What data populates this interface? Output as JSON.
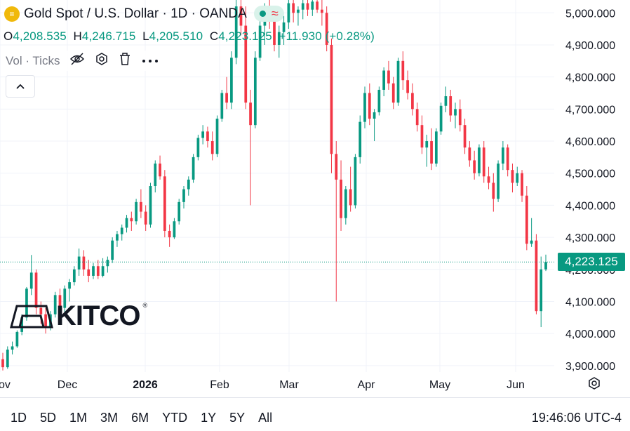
{
  "legend": {
    "symbol_glyph": "≡",
    "title": "Gold Spot / U.S. Dollar · 1D · OANDA",
    "wave_glyph": "≈"
  },
  "ohlc": {
    "o_label": "O",
    "o": "4,208.535",
    "h_label": "H",
    "h": "4,246.715",
    "l_label": "L",
    "l": "4,205.510",
    "c_label": "C",
    "c": "4,223.125",
    "change": "+11.930 (+0.28%)"
  },
  "volume_row": {
    "label": "Vol · Ticks"
  },
  "price_label": "4,223.125",
  "watermark": "KITCO",
  "time_ranges": [
    "1D",
    "5D",
    "1M",
    "3M",
    "6M",
    "YTD",
    "1Y",
    "5Y",
    "All"
  ],
  "clock": "19:46:06 UTC-4",
  "colors": {
    "up": "#089981",
    "down": "#f23645",
    "grid": "#f0f3fa"
  },
  "chart_data": {
    "type": "candlestick",
    "title": "Gold Spot / U.S. Dollar · 1D · OANDA",
    "ylim": [
      3880,
      5040
    ],
    "yticks": [
      "3,900.000",
      "4,000.000",
      "4,100.000",
      "4,200.000",
      "4,300.000",
      "4,400.000",
      "4,500.000",
      "4,600.000",
      "4,700.000",
      "4,800.000",
      "4,900.000",
      "5,000.000"
    ],
    "ytick_values": [
      3900,
      4000,
      4100,
      4200,
      4300,
      4400,
      4500,
      4600,
      4700,
      4800,
      4900,
      5000
    ],
    "xticks": [
      "ov",
      "Dec",
      "2026",
      "Feb",
      "Mar",
      "Apr",
      "May",
      "Jun"
    ],
    "last_price": 4223.125,
    "candles": [
      [
        3920,
        3940,
        3885,
        3895
      ],
      [
        3895,
        3960,
        3890,
        3950
      ],
      [
        3950,
        3975,
        3935,
        3960
      ],
      [
        3960,
        4010,
        3955,
        4005
      ],
      [
        4005,
        4060,
        3995,
        4050
      ],
      [
        4050,
        4145,
        4040,
        4140
      ],
      [
        4140,
        4245,
        4120,
        4190
      ],
      [
        4190,
        4200,
        4060,
        4080
      ],
      [
        4080,
        4100,
        4030,
        4060
      ],
      [
        4060,
        4080,
        4000,
        4020
      ],
      [
        4020,
        4070,
        4010,
        4060
      ],
      [
        4060,
        4130,
        4050,
        4120
      ],
      [
        4120,
        4140,
        4050,
        4080
      ],
      [
        4080,
        4150,
        4060,
        4140
      ],
      [
        4140,
        4170,
        4100,
        4160
      ],
      [
        4160,
        4210,
        4150,
        4200
      ],
      [
        4200,
        4265,
        4180,
        4240
      ],
      [
        4240,
        4260,
        4180,
        4200
      ],
      [
        4200,
        4230,
        4160,
        4180
      ],
      [
        4180,
        4220,
        4170,
        4210
      ],
      [
        4210,
        4230,
        4170,
        4180
      ],
      [
        4180,
        4235,
        4175,
        4210
      ],
      [
        4210,
        4240,
        4190,
        4230
      ],
      [
        4230,
        4300,
        4220,
        4290
      ],
      [
        4290,
        4320,
        4270,
        4310
      ],
      [
        4310,
        4340,
        4290,
        4330
      ],
      [
        4330,
        4370,
        4315,
        4360
      ],
      [
        4360,
        4380,
        4320,
        4350
      ],
      [
        4350,
        4420,
        4340,
        4410
      ],
      [
        4410,
        4450,
        4360,
        4380
      ],
      [
        4380,
        4400,
        4320,
        4340
      ],
      [
        4340,
        4470,
        4330,
        4460
      ],
      [
        4460,
        4540,
        4440,
        4530
      ],
      [
        4530,
        4555,
        4480,
        4490
      ],
      [
        4490,
        4510,
        4300,
        4320
      ],
      [
        4320,
        4340,
        4270,
        4300
      ],
      [
        4300,
        4360,
        4295,
        4350
      ],
      [
        4350,
        4420,
        4340,
        4410
      ],
      [
        4410,
        4460,
        4390,
        4450
      ],
      [
        4450,
        4490,
        4430,
        4480
      ],
      [
        4480,
        4560,
        4470,
        4550
      ],
      [
        4550,
        4620,
        4540,
        4610
      ],
      [
        4610,
        4650,
        4590,
        4630
      ],
      [
        4630,
        4645,
        4580,
        4600
      ],
      [
        4600,
        4630,
        4540,
        4560
      ],
      [
        4560,
        4680,
        4550,
        4670
      ],
      [
        4670,
        4760,
        4660,
        4750
      ],
      [
        4750,
        4800,
        4700,
        4720
      ],
      [
        4720,
        4880,
        4700,
        4860
      ],
      [
        4860,
        5040,
        4840,
        5020
      ],
      [
        5020,
        5040,
        4930,
        4960
      ],
      [
        4960,
        5020,
        4700,
        4720
      ],
      [
        4720,
        4760,
        4400,
        4650
      ],
      [
        4650,
        4880,
        4640,
        4860
      ],
      [
        4860,
        4980,
        4850,
        4960
      ],
      [
        4960,
        5030,
        4900,
        5000
      ],
      [
        5000,
        5040,
        4950,
        4980
      ],
      [
        4980,
        5000,
        4880,
        4900
      ],
      [
        4900,
        4960,
        4860,
        4940
      ],
      [
        4940,
        4990,
        4900,
        4970
      ],
      [
        4970,
        5040,
        4950,
        5030
      ],
      [
        5030,
        5040,
        4970,
        5000
      ],
      [
        5000,
        5020,
        4960,
        5010
      ],
      [
        5010,
        5040,
        4980,
        5030
      ],
      [
        5030,
        5040,
        4990,
        5010
      ],
      [
        5010,
        5040,
        4990,
        5035
      ],
      [
        5035,
        5040,
        5000,
        5010
      ],
      [
        5010,
        5040,
        4960,
        5000
      ],
      [
        5000,
        5020,
        4880,
        4900
      ],
      [
        4900,
        4920,
        4500,
        4560
      ],
      [
        4560,
        4600,
        4100,
        4480
      ],
      [
        4480,
        4540,
        4320,
        4360
      ],
      [
        4360,
        4460,
        4340,
        4450
      ],
      [
        4450,
        4520,
        4380,
        4400
      ],
      [
        4400,
        4560,
        4390,
        4550
      ],
      [
        4550,
        4680,
        4530,
        4660
      ],
      [
        4660,
        4770,
        4640,
        4750
      ],
      [
        4750,
        4780,
        4650,
        4670
      ],
      [
        4670,
        4700,
        4600,
        4690
      ],
      [
        4690,
        4770,
        4680,
        4760
      ],
      [
        4760,
        4830,
        4740,
        4820
      ],
      [
        4820,
        4850,
        4760,
        4780
      ],
      [
        4780,
        4800,
        4700,
        4720
      ],
      [
        4720,
        4860,
        4710,
        4850
      ],
      [
        4850,
        4880,
        4760,
        4790
      ],
      [
        4790,
        4820,
        4730,
        4750
      ],
      [
        4750,
        4780,
        4680,
        4700
      ],
      [
        4700,
        4720,
        4630,
        4650
      ],
      [
        4650,
        4680,
        4560,
        4580
      ],
      [
        4580,
        4620,
        4520,
        4600
      ],
      [
        4600,
        4640,
        4510,
        4530
      ],
      [
        4530,
        4640,
        4520,
        4630
      ],
      [
        4630,
        4720,
        4620,
        4710
      ],
      [
        4710,
        4770,
        4690,
        4740
      ],
      [
        4740,
        4760,
        4660,
        4680
      ],
      [
        4680,
        4720,
        4640,
        4700
      ],
      [
        4700,
        4730,
        4630,
        4650
      ],
      [
        4650,
        4670,
        4560,
        4580
      ],
      [
        4580,
        4600,
        4520,
        4540
      ],
      [
        4540,
        4570,
        4480,
        4500
      ],
      [
        4500,
        4590,
        4490,
        4580
      ],
      [
        4580,
        4600,
        4470,
        4490
      ],
      [
        4490,
        4520,
        4450,
        4470
      ],
      [
        4470,
        4500,
        4380,
        4420
      ],
      [
        4420,
        4540,
        4410,
        4530
      ],
      [
        4530,
        4600,
        4510,
        4580
      ],
      [
        4580,
        4590,
        4490,
        4510
      ],
      [
        4510,
        4530,
        4440,
        4470
      ],
      [
        4470,
        4520,
        4460,
        4500
      ],
      [
        4500,
        4510,
        4410,
        4430
      ],
      [
        4430,
        4460,
        4260,
        4280
      ],
      [
        4280,
        4360,
        4270,
        4290
      ],
      [
        4290,
        4310,
        4060,
        4070
      ],
      [
        4070,
        4240,
        4020,
        4200
      ],
      [
        4200,
        4246,
        4195,
        4223
      ]
    ]
  }
}
